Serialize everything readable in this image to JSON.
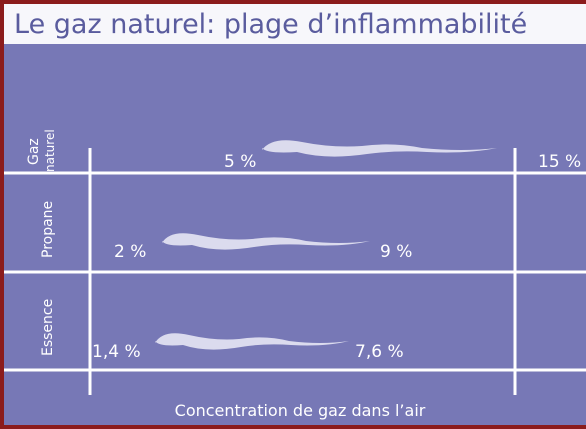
{
  "header": {
    "title": "Le gaz naturel: plage d’inflammabilité"
  },
  "rows": [
    {
      "label": [
        "Gaz",
        "naturel"
      ],
      "low": "5 %",
      "high": "15 %"
    },
    {
      "label": [
        "Propane"
      ],
      "low": "2 %",
      "high": "9 %"
    },
    {
      "label": [
        "Essence"
      ],
      "low": "1,4 %",
      "high": "7,6 %"
    }
  ],
  "axis_label": "Concentration de gaz dans l’air"
}
